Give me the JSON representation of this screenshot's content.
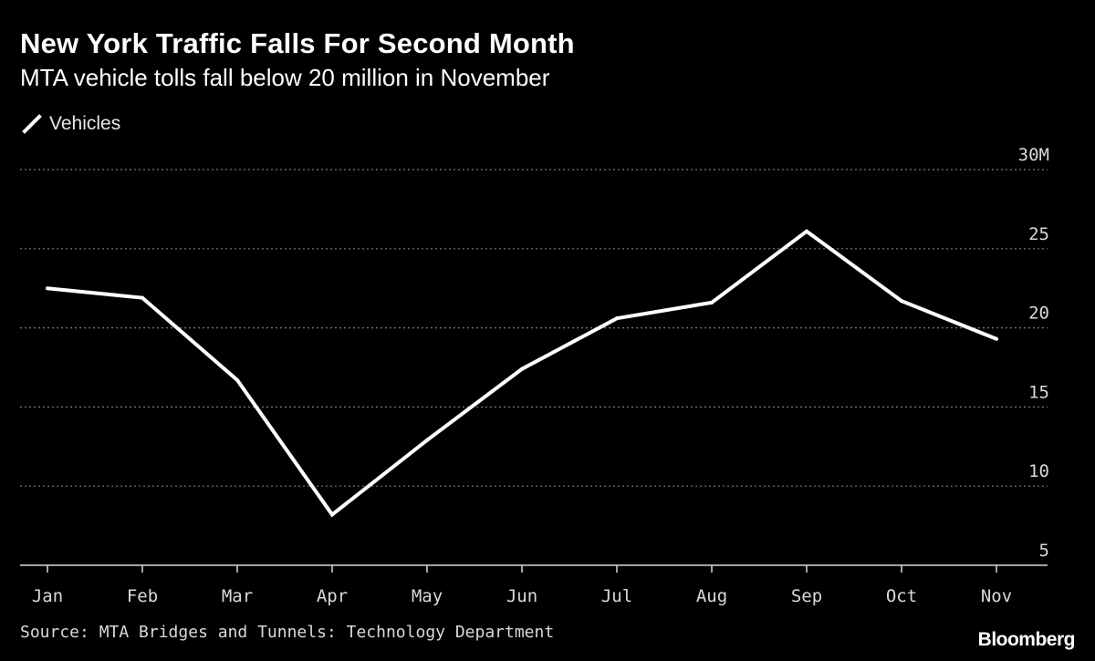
{
  "chart_data": {
    "type": "line",
    "title": "New York Traffic Falls For Second Month",
    "subtitle": "MTA vehicle tolls fall below 20 million in November",
    "categories": [
      "Jan",
      "Feb",
      "Mar",
      "Apr",
      "May",
      "Jun",
      "Jul",
      "Aug",
      "Sep",
      "Oct",
      "Nov"
    ],
    "series": [
      {
        "name": "Vehicles",
        "values": [
          22.5,
          21.9,
          16.7,
          8.2,
          12.9,
          17.4,
          20.6,
          21.6,
          26.1,
          21.7,
          19.3
        ],
        "color": "#ffffff"
      }
    ],
    "ylim": [
      5,
      30
    ],
    "yticks": [
      {
        "value": 5,
        "label": "5"
      },
      {
        "value": 10,
        "label": "10"
      },
      {
        "value": 15,
        "label": "15"
      },
      {
        "value": 20,
        "label": "20"
      },
      {
        "value": 25,
        "label": "25"
      },
      {
        "value": 30,
        "label": "30M"
      }
    ],
    "grid": true,
    "legend_position": "top-left",
    "source": "Source: MTA Bridges and Tunnels: Technology Department",
    "brand": "Bloomberg",
    "colors": {
      "background": "#000000",
      "line": "#ffffff",
      "grid": "#7a7a7a",
      "text": "#ffffff",
      "muted_text": "#d9d9d9"
    }
  }
}
